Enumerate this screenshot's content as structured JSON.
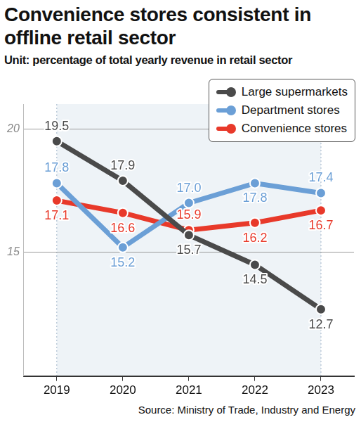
{
  "chart_data": {
    "type": "line",
    "title": "Convenience stores consistent in offline retail sector",
    "subtitle": "Unit: percentage of total yearly revenue in retail sector",
    "source": "Source: Ministry of Trade, Industry and Energy",
    "categories": [
      "2019",
      "2020",
      "2021",
      "2022",
      "2023"
    ],
    "series": [
      {
        "name": "Large supermarkets",
        "color": "#4a4a4a",
        "values": [
          19.5,
          17.9,
          15.7,
          14.5,
          12.7
        ]
      },
      {
        "name": "Department stores",
        "color": "#6b9fd6",
        "values": [
          17.8,
          15.2,
          17.0,
          17.8,
          17.4
        ],
        "value_labels": [
          "17.8",
          "15.2",
          "17.0",
          "17.8",
          "17.4"
        ]
      },
      {
        "name": "Convenience stores",
        "color": "#e8392a",
        "values": [
          17.1,
          16.6,
          15.9,
          16.2,
          16.7
        ]
      }
    ],
    "ylim": [
      10,
      21
    ],
    "yticks": [
      15,
      20
    ],
    "grid": true,
    "legend": "top-right",
    "data_labels": true,
    "marker": "circle"
  }
}
